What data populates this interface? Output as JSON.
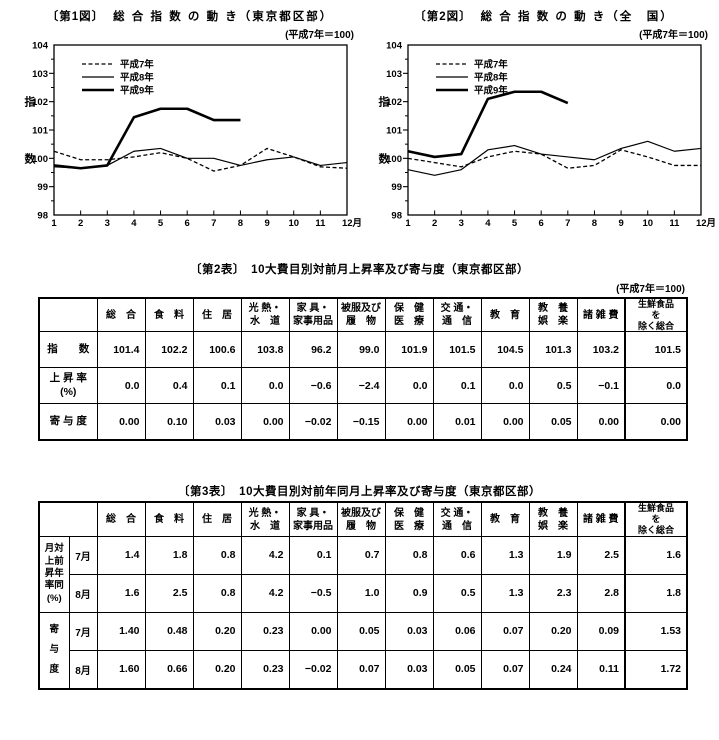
{
  "page": {
    "background": "#ffffff",
    "ink_color": "#000000"
  },
  "chart_data": [
    {
      "type": "line",
      "title_prefix": "〔第1図〕",
      "title_main": "総 合 指 数 の 動 き（東京都区部）",
      "base_note": "(平成7年＝100)",
      "ylabel_chars": [
        "指",
        "数"
      ],
      "ylim": [
        98,
        104
      ],
      "yticks": [
        98,
        99,
        100,
        101,
        102,
        103,
        104
      ],
      "x": [
        1,
        2,
        3,
        4,
        5,
        6,
        7,
        8,
        9,
        10,
        11,
        12
      ],
      "xtick_labels": [
        "1",
        "2",
        "3",
        "4",
        "5",
        "6",
        "7",
        "8",
        "9",
        "10",
        "11",
        "12月"
      ],
      "legend_position": "upper-left",
      "grid": false,
      "series": [
        {
          "name": "平成7年",
          "style": "dashed",
          "values": [
            100.25,
            99.95,
            99.95,
            100.05,
            100.2,
            100.0,
            99.55,
            99.75,
            100.35,
            100.05,
            99.7,
            99.65
          ]
        },
        {
          "name": "平成8年",
          "style": "solid-thin",
          "values": [
            99.7,
            99.65,
            99.75,
            100.25,
            100.35,
            100.0,
            100.0,
            99.75,
            99.95,
            100.05,
            99.75,
            99.85
          ]
        },
        {
          "name": "平成9年",
          "style": "solid-thick",
          "values": [
            99.75,
            99.65,
            99.75,
            101.45,
            101.75,
            101.75,
            101.35,
            101.35
          ]
        }
      ]
    },
    {
      "type": "line",
      "title_prefix": "〔第2図〕",
      "title_main": "総 合 指 数 の 動 き（全　国）",
      "base_note": "(平成7年＝100)",
      "ylabel_chars": [
        "指",
        "数"
      ],
      "ylim": [
        98,
        104
      ],
      "yticks": [
        98,
        99,
        100,
        101,
        102,
        103,
        104
      ],
      "x": [
        1,
        2,
        3,
        4,
        5,
        6,
        7,
        8,
        9,
        10,
        11,
        12
      ],
      "xtick_labels": [
        "1",
        "2",
        "3",
        "4",
        "5",
        "6",
        "7",
        "8",
        "9",
        "10",
        "11",
        "12月"
      ],
      "legend_position": "upper-left",
      "grid": false,
      "series": [
        {
          "name": "平成7年",
          "style": "dashed",
          "values": [
            100.0,
            99.85,
            99.7,
            100.05,
            100.25,
            100.15,
            99.65,
            99.75,
            100.3,
            100.05,
            99.75,
            99.75
          ]
        },
        {
          "name": "平成8年",
          "style": "solid-thin",
          "values": [
            99.6,
            99.4,
            99.6,
            100.3,
            100.45,
            100.15,
            100.05,
            99.95,
            100.35,
            100.6,
            100.25,
            100.35
          ]
        },
        {
          "name": "平成9年",
          "style": "solid-thick",
          "values": [
            100.25,
            100.05,
            100.15,
            102.1,
            102.35,
            102.35,
            101.95
          ]
        }
      ]
    }
  ],
  "column_headers": [
    [
      "総　合"
    ],
    [
      "食　料"
    ],
    [
      "住　居"
    ],
    [
      "光 熱・",
      "水　道"
    ],
    [
      "家 具・",
      "家事用品"
    ],
    [
      "被服及び",
      "履　物"
    ],
    [
      "保　健",
      "医　療"
    ],
    [
      "交 通・",
      "通　信"
    ],
    [
      "教　育"
    ],
    [
      "教　養",
      "娯　楽"
    ],
    [
      "諸 雑 費"
    ],
    [
      "生鮮食品",
      "を",
      "除く総合"
    ]
  ],
  "table2": {
    "title": "〔第2表〕　10大費目別対前月上昇率及び寄与度（東京都区部）",
    "base_note": "(平成7年＝100)",
    "rows": [
      {
        "label": [
          "指　　数"
        ],
        "values": [
          "101.4",
          "102.2",
          "100.6",
          "103.8",
          "96.2",
          "99.0",
          "101.9",
          "101.5",
          "104.5",
          "101.3",
          "103.2",
          "101.5"
        ]
      },
      {
        "label": [
          "上 昇 率",
          "(%)"
        ],
        "values": [
          "0.0",
          "0.4",
          "0.1",
          "0.0",
          "−0.6",
          "−2.4",
          "0.0",
          "0.1",
          "0.0",
          "0.5",
          "−0.1",
          "0.0"
        ]
      },
      {
        "label": [
          "寄 与 度"
        ],
        "values": [
          "0.00",
          "0.10",
          "0.03",
          "0.00",
          "−0.02",
          "−0.15",
          "0.00",
          "0.01",
          "0.00",
          "0.05",
          "0.00",
          "0.00"
        ]
      }
    ]
  },
  "table3": {
    "title": "〔第3表〕　10大費目別対前年同月上昇率及び寄与度（東京都区部）",
    "groups": [
      {
        "label": [
          "月対",
          "上前",
          "昇年",
          "率同",
          "(%)"
        ],
        "label_meaning": "対前年同月上昇率(%)",
        "rows": [
          {
            "month": "7月",
            "values": [
              "1.4",
              "1.8",
              "0.8",
              "4.2",
              "0.1",
              "0.7",
              "0.8",
              "0.6",
              "1.3",
              "1.9",
              "2.5",
              "1.6"
            ]
          },
          {
            "month": "8月",
            "values": [
              "1.6",
              "2.5",
              "0.8",
              "4.2",
              "−0.5",
              "1.0",
              "0.9",
              "0.5",
              "1.3",
              "2.3",
              "2.8",
              "1.8"
            ]
          }
        ]
      },
      {
        "label": [
          "寄",
          "与",
          "度"
        ],
        "label_meaning": "寄与度",
        "rows": [
          {
            "month": "7月",
            "values": [
              "1.40",
              "0.48",
              "0.20",
              "0.23",
              "0.00",
              "0.05",
              "0.03",
              "0.06",
              "0.07",
              "0.20",
              "0.09",
              "1.53"
            ]
          },
          {
            "month": "8月",
            "values": [
              "1.60",
              "0.66",
              "0.20",
              "0.23",
              "−0.02",
              "0.07",
              "0.03",
              "0.05",
              "0.07",
              "0.24",
              "0.11",
              "1.72"
            ]
          }
        ]
      }
    ]
  }
}
